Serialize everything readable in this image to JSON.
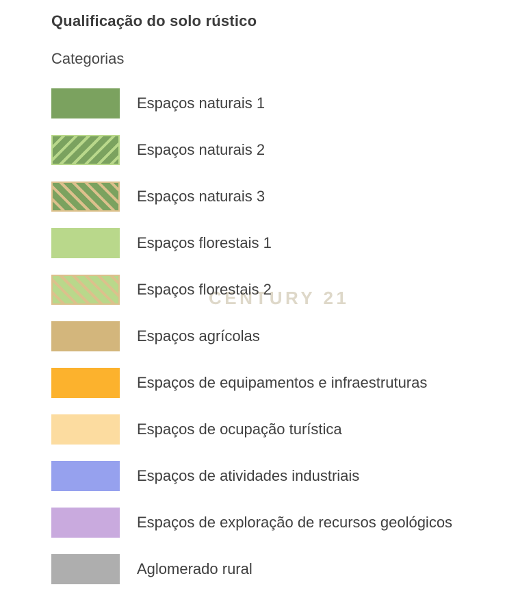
{
  "page": {
    "title": "Qualificação do solo rústico",
    "subtitle": "Categorias"
  },
  "watermark": {
    "text": "CENTURY 21",
    "color": "#ded8c9"
  },
  "legend": {
    "items": [
      {
        "label": "Espaços naturais 1",
        "fill": "#7ba25f",
        "pattern": "solid"
      },
      {
        "label": "Espaços naturais 2",
        "fill": "#7ba25f",
        "pattern": "diagonal-up",
        "stripe": "#b9d88b",
        "border": "#b9d88b"
      },
      {
        "label": "Espaços naturais 3",
        "fill": "#7ba25f",
        "pattern": "diagonal-down",
        "stripe": "#dcc08c",
        "border": "#dcc08c"
      },
      {
        "label": "Espaços florestais 1",
        "fill": "#b9d88b",
        "pattern": "solid"
      },
      {
        "label": "Espaços florestais 2",
        "fill": "#b9d88b",
        "pattern": "diagonal-down",
        "stripe": "#dcc08c",
        "border": "#dcc08c"
      },
      {
        "label": "Espaços agrícolas",
        "fill": "#d3b67c",
        "pattern": "solid"
      },
      {
        "label": "Espaços de equipamentos e infraestruturas",
        "fill": "#fcb22d",
        "pattern": "solid"
      },
      {
        "label": "Espaços de ocupação turística",
        "fill": "#fcdca0",
        "pattern": "solid"
      },
      {
        "label": "Espaços de atividades industriais",
        "fill": "#96a1ee",
        "pattern": "solid"
      },
      {
        "label": "Espaços de exploração de recursos geológicos",
        "fill": "#c9aade",
        "pattern": "solid"
      },
      {
        "label": "Aglomerado rural",
        "fill": "#aeaeae",
        "pattern": "solid"
      }
    ]
  }
}
